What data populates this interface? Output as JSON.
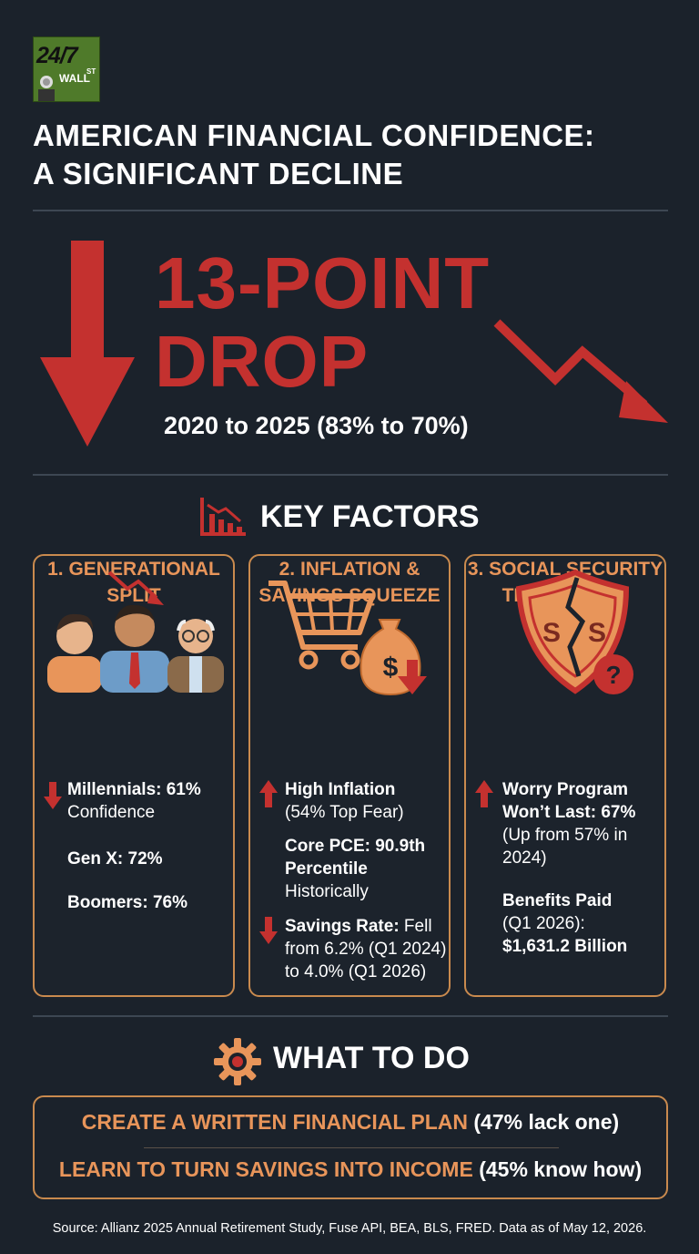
{
  "brand": {
    "logo_number": "24/7",
    "logo_word": "WALL",
    "logo_sup": "ST"
  },
  "header": {
    "title_line1": "AMERICAN FINANCIAL CONFIDENCE:",
    "title_line2": "A SIGNIFICANT DECLINE"
  },
  "hero": {
    "headline_line1": "13-POINT",
    "headline_line2": "DROP",
    "range": "2020 to 2025 (83% to 70%)",
    "start_value_percent": 83,
    "end_value_percent": 70,
    "drop_points": 13
  },
  "key_factors": {
    "title": "KEY FACTORS",
    "cards": [
      {
        "heading_line1": "1. GENERATIONAL",
        "heading_line2": "SPLIT",
        "items": [
          {
            "label": "Millennials: 61%",
            "sub": "Confidence",
            "trend": "down"
          },
          {
            "label": "Gen X: 72%"
          },
          {
            "label": "Boomers: 76%"
          }
        ]
      },
      {
        "heading_line1": "2. INFLATION &",
        "heading_line2": "SAVINGS SQUEEZE",
        "items": [
          {
            "label": "High Inflation",
            "sub": "(54% Top Fear)",
            "trend": "up"
          },
          {
            "label_line1": "Core PCE: 90.9th",
            "label_line2": "Percentile",
            "sub": "Historically"
          },
          {
            "label": "Savings Rate:",
            "sub_inline": " Fell",
            "sub_line2": "from 6.2% (Q1 2024)",
            "sub_line3": "to 4.0% (Q1 2026)",
            "trend": "down"
          }
        ]
      },
      {
        "heading_line1": "3. SOCIAL SECURITY",
        "heading_line2": "TRUST ISSUE",
        "items": [
          {
            "label_line1": "Worry Program",
            "label_line2": "Won’t Last: 67%",
            "sub_line1": "(Up from 57% in",
            "sub_line2": "2024)",
            "trend": "up"
          },
          {
            "label": "Benefits Paid",
            "sub": "(Q1 2026):",
            "value": "$1,631.2 Billion"
          }
        ]
      }
    ]
  },
  "what_to_do": {
    "title": "WHAT TO DO",
    "actions": [
      {
        "highlight": "CREATE A WRITTEN FINANCIAL PLAN",
        "note": " (47% lack one)"
      },
      {
        "highlight": "LEARN TO TURN SAVINGS INTO INCOME",
        "note": " (45% know how)"
      }
    ]
  },
  "source": "Source: Allianz 2025 Annual Retirement Study, Fuse API, BEA, BLS, FRED. Data as of May 12, 2026.",
  "colors": {
    "background": "#1b222b",
    "accent_red": "#c4312f",
    "accent_orange": "#e8955a",
    "border_orange": "#c98a4e"
  },
  "icons": [
    "bar-chart-down-icon",
    "people-icon",
    "cart-icon",
    "money-bag-icon",
    "shield-icon",
    "gear-icon",
    "arrow-up-icon",
    "arrow-down-icon"
  ]
}
